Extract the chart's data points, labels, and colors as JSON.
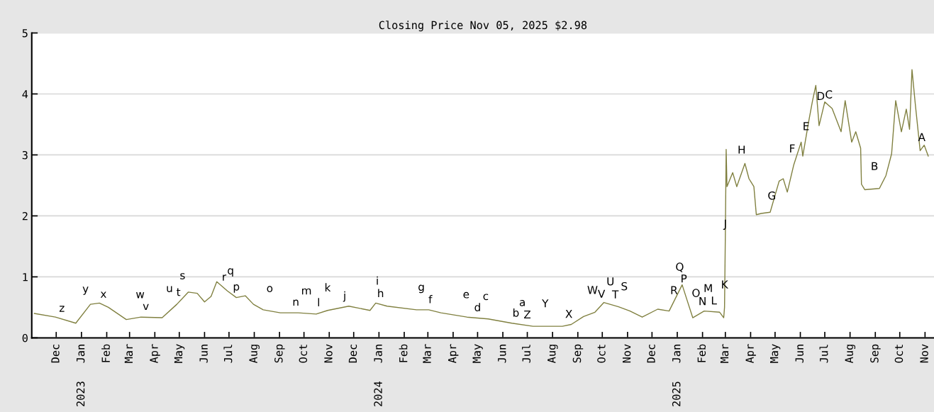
{
  "chart_data": {
    "type": "line",
    "title": "Closing Price Nov 05, 2025 $2.98",
    "xlim": [
      "2022-11-01",
      "2025-11-12"
    ],
    "ylim": [
      0,
      5
    ],
    "yticks": [
      0,
      1,
      2,
      3,
      4,
      5
    ],
    "grid": "y",
    "legend": false,
    "marker": "none",
    "line_style": "solid",
    "xticks": [
      {
        "value": "2022-12-01",
        "label": "Dec"
      },
      {
        "value": "2023-01-01",
        "label": "Jan"
      },
      {
        "value": "2023-02-01",
        "label": "Feb"
      },
      {
        "value": "2023-03-01",
        "label": "Mar"
      },
      {
        "value": "2023-04-01",
        "label": "Apr"
      },
      {
        "value": "2023-05-01",
        "label": "May"
      },
      {
        "value": "2023-06-01",
        "label": "Jun"
      },
      {
        "value": "2023-07-01",
        "label": "Jul"
      },
      {
        "value": "2023-08-01",
        "label": "Aug"
      },
      {
        "value": "2023-09-01",
        "label": "Sep"
      },
      {
        "value": "2023-10-01",
        "label": "Oct"
      },
      {
        "value": "2023-11-01",
        "label": "Nov"
      },
      {
        "value": "2023-12-01",
        "label": "Dec"
      },
      {
        "value": "2024-01-01",
        "label": "Jan"
      },
      {
        "value": "2024-02-01",
        "label": "Feb"
      },
      {
        "value": "2024-03-01",
        "label": "Mar"
      },
      {
        "value": "2024-04-01",
        "label": "Apr"
      },
      {
        "value": "2024-05-01",
        "label": "May"
      },
      {
        "value": "2024-06-01",
        "label": "Jun"
      },
      {
        "value": "2024-07-01",
        "label": "Jul"
      },
      {
        "value": "2024-08-01",
        "label": "Aug"
      },
      {
        "value": "2024-09-01",
        "label": "Sep"
      },
      {
        "value": "2024-10-01",
        "label": "Oct"
      },
      {
        "value": "2024-11-01",
        "label": "Nov"
      },
      {
        "value": "2024-12-01",
        "label": "Dec"
      },
      {
        "value": "2025-01-01",
        "label": "Jan"
      },
      {
        "value": "2025-02-01",
        "label": "Feb"
      },
      {
        "value": "2025-03-01",
        "label": "Mar"
      },
      {
        "value": "2025-04-01",
        "label": "Apr"
      },
      {
        "value": "2025-05-01",
        "label": "May"
      },
      {
        "value": "2025-06-01",
        "label": "Jun"
      },
      {
        "value": "2025-07-01",
        "label": "Jul"
      },
      {
        "value": "2025-08-01",
        "label": "Aug"
      },
      {
        "value": "2025-09-01",
        "label": "Sep"
      },
      {
        "value": "2025-10-01",
        "label": "Oct"
      },
      {
        "value": "2025-11-01",
        "label": "Nov"
      }
    ],
    "series": [
      {
        "color": "#808040",
        "x": [
          "2022-11-04",
          "2022-11-30",
          "2022-12-25",
          "2023-01-12",
          "2023-01-23",
          "2023-02-03",
          "2023-02-25",
          "2023-03-15",
          "2023-04-10",
          "2023-04-28",
          "2023-05-12",
          "2023-05-23",
          "2023-06-01",
          "2023-06-09",
          "2023-06-16",
          "2023-06-23",
          "2023-06-29",
          "2023-07-10",
          "2023-07-21",
          "2023-07-31",
          "2023-08-12",
          "2023-09-02",
          "2023-09-24",
          "2023-10-16",
          "2023-10-30",
          "2023-11-25",
          "2023-12-21",
          "2023-12-28",
          "2024-01-11",
          "2024-02-16",
          "2024-03-02",
          "2024-03-17",
          "2024-04-18",
          "2024-05-14",
          "2024-06-12",
          "2024-07-08",
          "2024-08-13",
          "2024-08-24",
          "2024-09-08",
          "2024-09-22",
          "2024-10-03",
          "2024-10-21",
          "2024-11-04",
          "2024-11-19",
          "2024-12-08",
          "2024-12-22",
          "2025-01-07",
          "2025-01-13",
          "2025-01-20",
          "2025-02-03",
          "2025-02-22",
          "2025-02-27",
          "2025-02-28",
          "2025-03-01",
          "2025-03-02",
          "2025-03-03",
          "2025-03-10",
          "2025-03-15",
          "2025-03-25",
          "2025-03-30",
          "2025-04-05",
          "2025-04-08",
          "2025-04-14",
          "2025-04-25",
          "2025-05-06",
          "2025-05-11",
          "2025-05-16",
          "2025-05-24",
          "2025-06-02",
          "2025-06-04",
          "2025-06-11",
          "2025-06-16",
          "2025-06-20",
          "2025-06-24",
          "2025-07-01",
          "2025-07-10",
          "2025-07-21",
          "2025-07-26",
          "2025-08-03",
          "2025-08-08",
          "2025-08-14",
          "2025-08-15",
          "2025-08-19",
          "2025-09-06",
          "2025-09-14",
          "2025-09-21",
          "2025-09-26",
          "2025-10-03",
          "2025-10-09",
          "2025-10-13",
          "2025-10-16",
          "2025-10-20",
          "2025-10-26",
          "2025-10-31",
          "2025-11-05"
        ],
        "values": [
          0.4,
          0.34,
          0.24,
          0.55,
          0.57,
          0.5,
          0.3,
          0.34,
          0.33,
          0.55,
          0.75,
          0.73,
          0.59,
          0.68,
          0.92,
          0.84,
          0.77,
          0.66,
          0.69,
          0.55,
          0.46,
          0.41,
          0.41,
          0.39,
          0.45,
          0.52,
          0.45,
          0.57,
          0.52,
          0.46,
          0.46,
          0.41,
          0.34,
          0.31,
          0.24,
          0.19,
          0.19,
          0.22,
          0.35,
          0.42,
          0.58,
          0.51,
          0.44,
          0.34,
          0.47,
          0.44,
          0.87,
          0.62,
          0.33,
          0.44,
          0.42,
          0.33,
          0.5,
          1.69,
          3.09,
          2.48,
          2.71,
          2.48,
          2.86,
          2.61,
          2.48,
          2.02,
          2.04,
          2.06,
          2.57,
          2.61,
          2.39,
          2.84,
          3.21,
          2.98,
          3.53,
          3.89,
          4.14,
          3.48,
          3.87,
          3.76,
          3.38,
          3.89,
          3.21,
          3.38,
          3.11,
          2.52,
          2.43,
          2.45,
          2.66,
          3.02,
          3.89,
          3.38,
          3.75,
          3.42,
          4.4,
          3.84,
          3.07,
          3.16,
          2.98
        ]
      }
    ],
    "x2lim": [
      "2022-11-01",
      "2025-11-12"
    ],
    "x2ticks": [
      {
        "value": "2023-01-01",
        "label": "2023"
      },
      {
        "value": "2024-01-01",
        "label": "2024"
      },
      {
        "value": "2025-01-01",
        "label": "2025"
      }
    ],
    "annotations": [
      {
        "text": "z",
        "x": "2022-12-08",
        "y": 0.31
      },
      {
        "text": "y",
        "x": "2023-01-06",
        "y": 0.43
      },
      {
        "text": "x",
        "x": "2023-01-28",
        "y": 0.54
      },
      {
        "text": "w",
        "x": "2023-03-14",
        "y": 0.34
      },
      {
        "text": "v",
        "x": "2023-03-21",
        "y": 0.34
      },
      {
        "text": "u",
        "x": "2023-04-19",
        "y": 0.44
      },
      {
        "text": "t",
        "x": "2023-04-30",
        "y": 0.57
      },
      {
        "text": "s",
        "x": "2023-05-05",
        "y": 0.65
      },
      {
        "text": "r",
        "x": "2023-06-25",
        "y": 0.82
      },
      {
        "text": "q",
        "x": "2023-07-03",
        "y": 0.73
      },
      {
        "text": "p",
        "x": "2023-07-10",
        "y": 0.66
      },
      {
        "text": "o",
        "x": "2023-08-20",
        "y": 0.44
      },
      {
        "text": "n",
        "x": "2023-09-21",
        "y": 0.41
      },
      {
        "text": "m",
        "x": "2023-10-04",
        "y": 0.4
      },
      {
        "text": "l",
        "x": "2023-10-19",
        "y": 0.4
      },
      {
        "text": "k",
        "x": "2023-10-30",
        "y": 0.45
      },
      {
        "text": "j",
        "x": "2023-11-20",
        "y": 0.51
      },
      {
        "text": "i",
        "x": "2023-12-30",
        "y": 0.56
      },
      {
        "text": "h",
        "x": "2024-01-03",
        "y": 0.55
      },
      {
        "text": "g",
        "x": "2024-02-22",
        "y": 0.46
      },
      {
        "text": "f",
        "x": "2024-03-04",
        "y": 0.45
      },
      {
        "text": "e",
        "x": "2024-04-17",
        "y": 0.34
      },
      {
        "text": "d",
        "x": "2024-05-01",
        "y": 0.32
      },
      {
        "text": "c",
        "x": "2024-05-11",
        "y": 0.31
      },
      {
        "text": "b",
        "x": "2024-06-17",
        "y": 0.23
      },
      {
        "text": "a",
        "x": "2024-06-25",
        "y": 0.21
      },
      {
        "text": "Z",
        "x": "2024-07-01",
        "y": 0.2
      },
      {
        "text": "Y",
        "x": "2024-07-23",
        "y": 0.19
      },
      {
        "text": "X",
        "x": "2024-08-21",
        "y": 0.21
      },
      {
        "text": "W",
        "x": "2024-09-19",
        "y": 0.41
      },
      {
        "text": "V",
        "x": "2024-09-30",
        "y": 0.54
      },
      {
        "text": "U",
        "x": "2024-10-11",
        "y": 0.55
      },
      {
        "text": "T",
        "x": "2024-10-17",
        "y": 0.53
      },
      {
        "text": "S",
        "x": "2024-10-28",
        "y": 0.47
      },
      {
        "text": "R",
        "x": "2024-12-28",
        "y": 0.6
      },
      {
        "text": "Q",
        "x": "2025-01-04",
        "y": 0.79
      },
      {
        "text": "P",
        "x": "2025-01-09",
        "y": 0.79
      },
      {
        "text": "O",
        "x": "2025-01-24",
        "y": 0.36
      },
      {
        "text": "N",
        "x": "2025-02-01",
        "y": 0.42
      },
      {
        "text": "M",
        "x": "2025-02-08",
        "y": 0.44
      },
      {
        "text": "L",
        "x": "2025-02-15",
        "y": 0.43
      },
      {
        "text": "K",
        "x": "2025-02-28",
        "y": 0.5
      },
      {
        "text": "J",
        "x": "2025-03-01",
        "y": 1.69
      },
      {
        "text": "H",
        "x": "2025-03-21",
        "y": 2.71
      },
      {
        "text": "G",
        "x": "2025-04-27",
        "y": 2.15
      },
      {
        "text": "F",
        "x": "2025-05-22",
        "y": 2.73
      },
      {
        "text": "E",
        "x": "2025-06-08",
        "y": 3.29
      },
      {
        "text": "D",
        "x": "2025-06-26",
        "y": 3.59
      },
      {
        "text": "C",
        "x": "2025-07-06",
        "y": 3.81
      },
      {
        "text": "B",
        "x": "2025-08-31",
        "y": 2.44
      },
      {
        "text": "A",
        "x": "2025-10-28",
        "y": 3.11
      }
    ]
  }
}
